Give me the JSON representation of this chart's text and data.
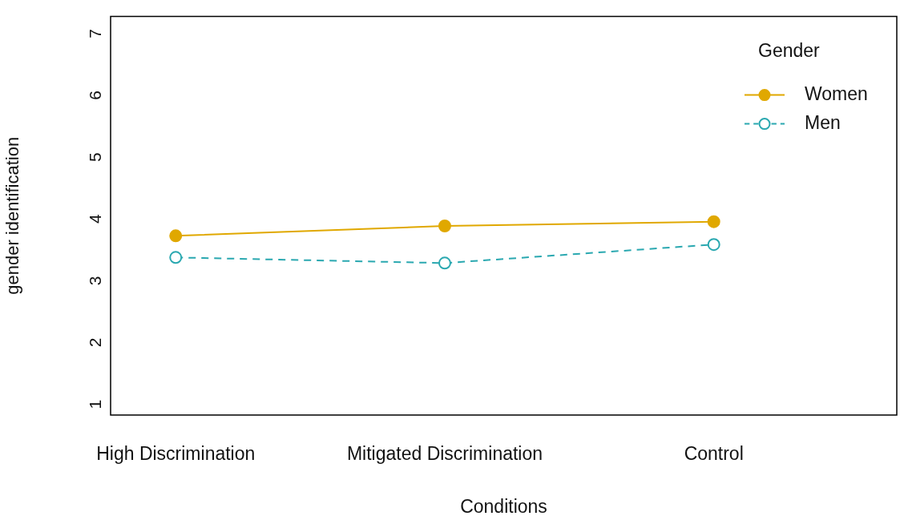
{
  "chart_data": {
    "type": "line",
    "xlabel": "Conditions",
    "ylabel": "gender identification",
    "legend_title": "Gender",
    "categories": [
      "High Discrimination",
      "Mitigated Discrimination",
      "Control"
    ],
    "series": [
      {
        "name": "Women",
        "color": "#e0a800",
        "values": [
          3.65,
          3.81,
          3.88
        ],
        "line_style": "solid"
      },
      {
        "name": "Men",
        "color": "#2aa8b0",
        "values": [
          3.3,
          3.21,
          3.51
        ],
        "line_style": "dashed"
      }
    ],
    "ylim": [
      0.75,
      7.2
    ],
    "yticks": [
      1,
      2,
      3,
      4,
      5,
      6,
      7
    ],
    "marker": "circle",
    "legend": "top right",
    "grid": false
  }
}
